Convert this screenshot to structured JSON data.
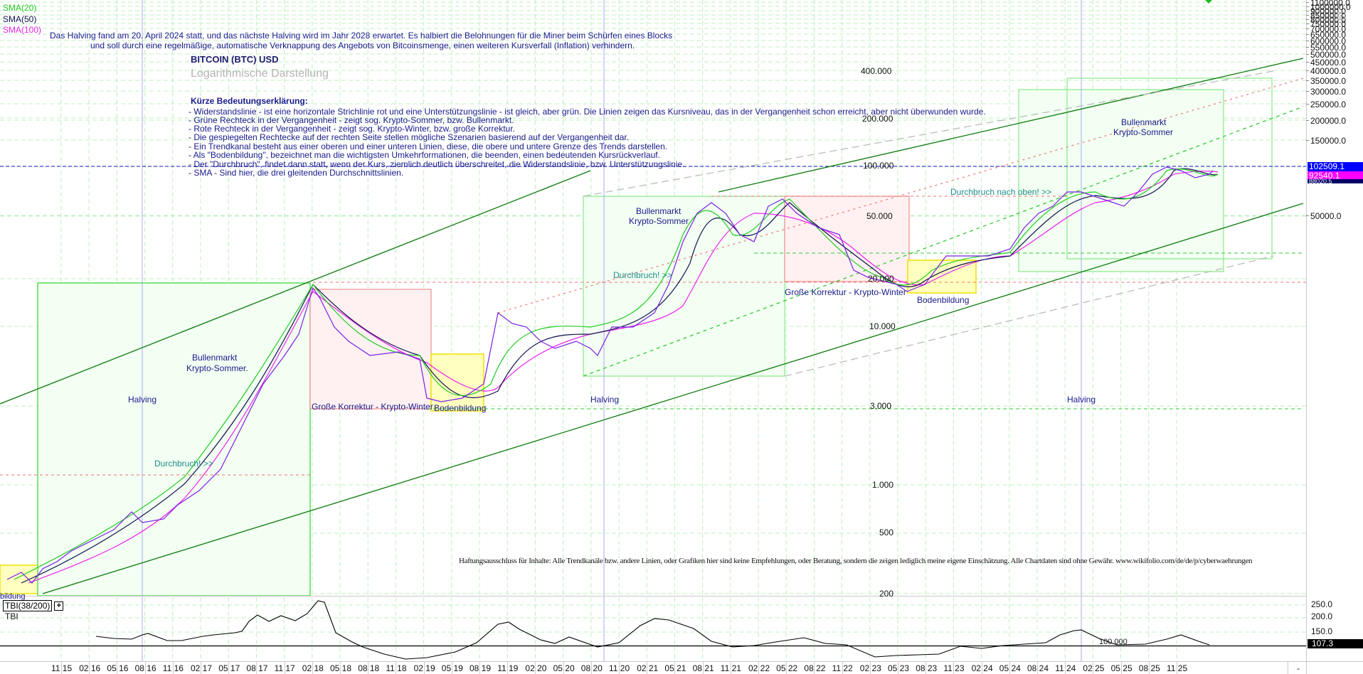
{
  "chart_data": {
    "type": "line",
    "title": "BITCOIN (BTC) USD",
    "subtitle": "Logarithmische Darstellung",
    "scale": "log",
    "xlabel": "",
    "ylabel": "",
    "legend": {
      "position": "top-left",
      "entries": [
        {
          "name": "SMA(20)",
          "color": "#22cc22"
        },
        {
          "name": "SMA(50)",
          "color": "#101050"
        },
        {
          "name": "SMA(100)",
          "color": "#ee22ee"
        }
      ]
    },
    "y_axis_ticks": [
      "1100000.0",
      "1000000.0",
      "900000.0",
      "850000.0",
      "800000.0",
      "750000.0",
      "700000.0",
      "650000.0",
      "600000.0",
      "550000.0",
      "500000.0",
      "450000.0",
      "400000.0",
      "350000.0",
      "300000.0",
      "250000.0",
      "200000.0",
      "150000.0",
      "50000.0"
    ],
    "in_plot_level_labels": [
      "400.000",
      "200.000",
      "100.000",
      "50.000",
      "20.000",
      "10.000",
      "3.000",
      "1.000",
      "500",
      "200"
    ],
    "x_axis_ticks": [
      "11 15",
      "02 16",
      "05 16",
      "08 16",
      "11 16",
      "02 17",
      "05 17",
      "08 17",
      "11 17",
      "02 18",
      "05 18",
      "08 18",
      "11 18",
      "02 19",
      "05 19",
      "08 19",
      "11 19",
      "02 20",
      "05 20",
      "08 20",
      "11 20",
      "02 21",
      "05 21",
      "08 21",
      "11 21",
      "02 22",
      "05 22",
      "08 22",
      "11 22",
      "02 23",
      "05 23",
      "08 23",
      "11 23",
      "02 24",
      "05 24",
      "08 24",
      "11 24",
      "02 25",
      "05 25",
      "08 25",
      "11 25",
      "-"
    ],
    "last_values": {
      "price": "102509.1",
      "sma_100": "92540.1",
      "sma_50": "88020.5"
    },
    "series": [
      {
        "name": "BTC Price",
        "color": "#7a1fe6",
        "x": [
          "11 15",
          "05 16",
          "11 16",
          "05 17",
          "11 17",
          "12 17",
          "05 18",
          "11 18",
          "02 19",
          "05 19",
          "08 19",
          "11 19",
          "03 20",
          "05 20",
          "11 20",
          "04 21",
          "07 21",
          "11 21",
          "05 22",
          "11 22",
          "01 23",
          "05 23",
          "10 23",
          "03 24",
          "08 24",
          "12 24",
          "02 25",
          "04 25",
          "05 25"
        ],
        "values": [
          320,
          450,
          730,
          2000,
          9000,
          19000,
          8000,
          4000,
          3500,
          8000,
          10500,
          7500,
          5000,
          9000,
          18000,
          63000,
          33000,
          67000,
          30000,
          16500,
          21000,
          27000,
          34000,
          70000,
          58000,
          100000,
          100000,
          84000,
          102509
        ]
      },
      {
        "name": "SMA(20)",
        "color": "#22cc22"
      },
      {
        "name": "SMA(50)",
        "color": "#101050"
      },
      {
        "name": "SMA(100)",
        "color": "#ee22ee"
      }
    ],
    "indicator": {
      "name": "TBI(38/200)",
      "label": "TBI",
      "y_ticks": [
        "250.0",
        "200.0",
        "150.0"
      ],
      "last_value": "107.3",
      "reference_label": "100.000",
      "x": [
        "02 16",
        "08 16",
        "11 16",
        "08 17",
        "02 18",
        "08 18",
        "02 19",
        "08 19",
        "02 20",
        "02 21",
        "08 21",
        "02 22",
        "08 22",
        "02 23",
        "08 23",
        "05 24",
        "08 24",
        "02 25",
        "05 25"
      ],
      "values": [
        120,
        130,
        100,
        180,
        255,
        120,
        95,
        160,
        95,
        210,
        100,
        120,
        90,
        95,
        110,
        160,
        105,
        125,
        107.3
      ]
    },
    "annotations": [
      "Halving",
      "Halving",
      "Halving",
      "Bullenmarkt Krypto-Sommer.",
      "Große Korrektur - Krypto-Winter",
      "Bodenbildung",
      "Durchbruch! >>",
      "Bullenmarkt Krypto-Sommer",
      "Große Korrektur - Krypto-Winter",
      "Bodenbildung",
      "Durchbruch nach oben! >>",
      "Bullenmarkt Krypto-Sommer"
    ],
    "grid": true
  },
  "legend": {
    "sma20": "SMA(20)",
    "sma50": "SMA(50)",
    "sma100": "SMA(100)"
  },
  "intro": {
    "line1": "Das Halving fand am 20. April 2024 statt, und das nächste Halving wird im Jahr 2028 erwartet. Es halbiert die Belohnungen für die Miner beim Schürfen eines Blocks",
    "line2": "und soll durch eine regelmäßige, automatische Verknappung des Angebots von Bitcoinsmenge, einen weiteren Kursverfall (Inflation) verhindern."
  },
  "title": {
    "main": "BITCOIN (BTC) USD",
    "sub": "Logarithmische Darstellung"
  },
  "explanation": {
    "heading": "Kürze Bedeutungserklärung:",
    "items": [
      "- Widerstandslinie - ist eine horizontale Strichlinie rot und eine Unterstützungslinie - ist gleich, aber grün. Die Linien zeigen das Kursniveau, das in der Vergangenheit schon erreicht, aber nicht überwunden wurde.",
      "- Grüne Rechteck in der Vergangenheit - zeigt sog. Krypto-Sommer, bzw. Bullenmarkt.",
      " - Rote Rechteck in der Vergangenheit - zeigt sog. Krypto-Winter, bzw. große Korrektur.",
      "- Die gespiegelten Rechtecke auf der rechten Seite stellen mögliche Szenarien basierend auf der Vergangenheit dar.",
      " - Ein Trendkanal besteht aus einer oberen und einer unteren Linien, diese, die obere und untere Grenze des Trends darstellen.",
      " - Als \"Bodenbildung\", bezeichnet man die wichtigsten Umkehrformationen, die beenden, einen bedeutenden Kursrückverlauf.",
      "- Der \"Durchbruch\", findet dann statt, wenn der Kurs, ziemlich deutlich überschreitet, die Widerstandslinie, bzw. Unterstützungslinie.",
      " - SMA - Sind hier, die drei gleitenden Durchschnittslinien."
    ]
  },
  "annotations": {
    "halving1": "Halving",
    "halving2": "Halving",
    "halving3": "Halving",
    "bull1_l1": "Bullenmarkt",
    "bull1_l2": "Krypto-Sommer.",
    "korr1": "Große Korrektur - Krypto-Winter",
    "boden1": "Bodenbildung",
    "boden0": "bildung",
    "durch1": "Durchbruch! >>",
    "bull2_l1": "Bullenmarkt",
    "bull2_l2": "Krypto-Sommer",
    "durch2": "Durchbruch! >>",
    "korr2": "Große Korrektur - Krypto-Winter",
    "boden2": "Bodenbildung",
    "durch3": "Durchbruch nach oben! >>",
    "bull3_l1": "Bullenmarkt",
    "bull3_l2": "Krypto-Sommer"
  },
  "levels": {
    "l400k": "400.000",
    "l200k": "200.000",
    "l100k": "100.000",
    "l50k": "50.000",
    "l20k": "20.000",
    "l10k": "10.000",
    "l3k": "3.000",
    "l1k": "1.000",
    "l500": "500",
    "l200": "200"
  },
  "y_axis": {
    "ticks": [
      {
        "label": "1100000.0",
        "y": 3
      },
      {
        "label": "1000000.0",
        "y": 9
      },
      {
        "label": "900000.0",
        "y": 15
      },
      {
        "label": "850000.0",
        "y": 21
      },
      {
        "label": "800000.0",
        "y": 27
      },
      {
        "label": "750000.0",
        "y": 33
      },
      {
        "label": "700000.0",
        "y": 40
      },
      {
        "label": "650000.0",
        "y": 48
      },
      {
        "label": "600000.0",
        "y": 57
      },
      {
        "label": "550000.0",
        "y": 66
      },
      {
        "label": "500000.0",
        "y": 76
      },
      {
        "label": "450000.0",
        "y": 87
      },
      {
        "label": "400000.0",
        "y": 99
      },
      {
        "label": "350000.0",
        "y": 113
      },
      {
        "label": "300000.0",
        "y": 128
      },
      {
        "label": "250000.0",
        "y": 146
      },
      {
        "label": "200000.0",
        "y": 169
      },
      {
        "label": "150000.0",
        "y": 197
      },
      {
        "label": "50000.0",
        "y": 303
      }
    ],
    "badge_price": "102509.1",
    "badge_sma100": "92540.1",
    "badge_sma50": "88020.5"
  },
  "disclaimer": "Haftungsausschluss für Inhalte: Alle Trendkanäle bzw. andere Linien, oder Grafiken hier sind keine Empfehlungen, oder Beratung, sondern die zeigen lediglich meine eigene Einschätzung. Alle Chartdaten sind ohne Gewähr.  www.wikifolio.com/de/de/p/cyberwaehrungen",
  "indicator": {
    "name": "TBI(38/200)",
    "expand": "+",
    "label": "TBI",
    "ref_label": "100.000",
    "ticks": [
      "250.0",
      "200.0",
      "150.0"
    ],
    "last_value": "107.3"
  },
  "x_axis": {
    "ticks": [
      "11 15",
      "02 16",
      "05 16",
      "08 16",
      "11 16",
      "02 17",
      "05 17",
      "08 17",
      "11 17",
      "02 18",
      "05 18",
      "08 18",
      "11 18",
      "02 19",
      "05 19",
      "08 19",
      "11 19",
      "02 20",
      "05 20",
      "08 20",
      "11 20",
      "02 21",
      "05 21",
      "08 21",
      "11 21",
      "02 22",
      "05 22",
      "08 22",
      "11 22",
      "02 23",
      "05 23",
      "08 23",
      "11 23",
      "02 24",
      "05 24",
      "08 24",
      "11 24",
      "02 25",
      "05 25",
      "08 25",
      "11 25"
    ],
    "end": "-"
  },
  "colors": {
    "price": "#7a1fe6",
    "sma20": "#22cc22",
    "sma50": "#101050",
    "sma100": "#ee22ee",
    "grid": "#b9f0b9",
    "bull_box": "#f1fff1",
    "bear_box": "#fff0f0",
    "bottom_box": "#ffffb0",
    "trend": "#0c7a0c",
    "badge_price": "#0000ff",
    "badge_sma100": "#ff00ff",
    "badge_sma50": "#000066"
  }
}
